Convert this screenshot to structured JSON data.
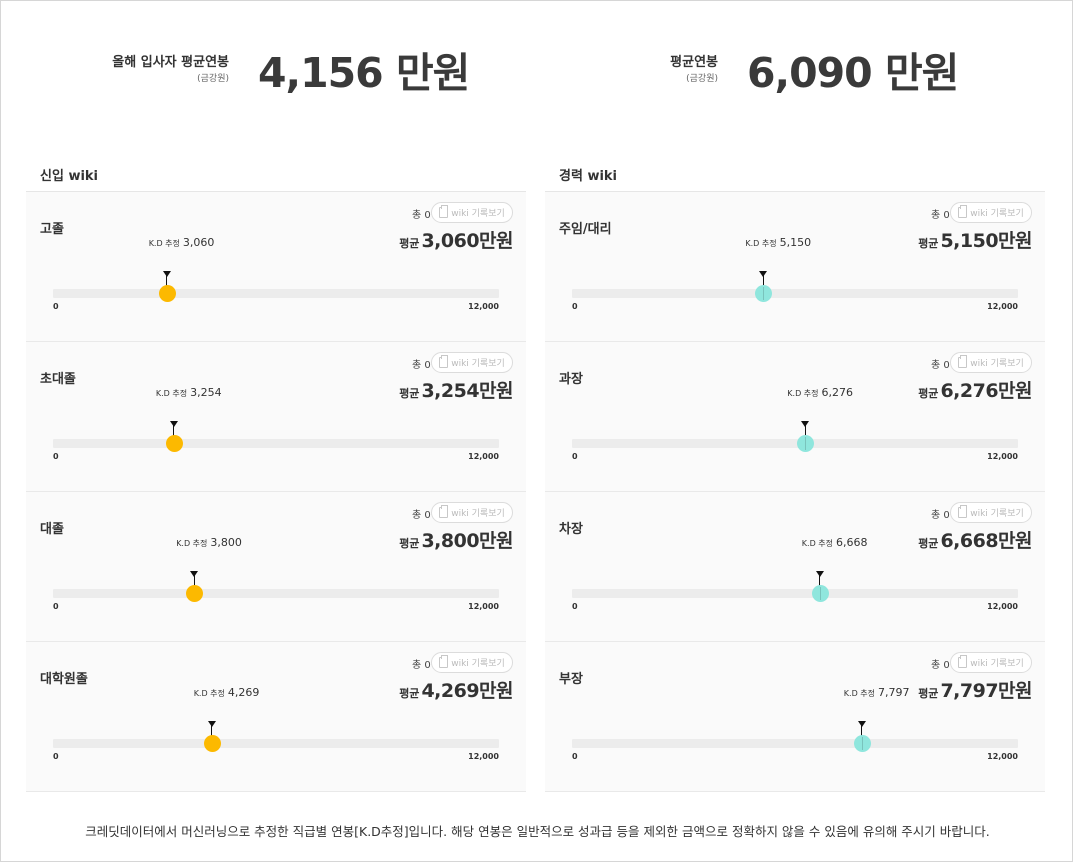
{
  "summary": {
    "new_hire": {
      "label": "올해 입사자 평균연봉",
      "sub": "(금강원)",
      "value": "4,156 만원"
    },
    "average": {
      "label": "평균연봉",
      "sub": "(금강원)",
      "value": "6,090 만원"
    }
  },
  "new_wiki": {
    "title": "신입 wiki",
    "cards": [
      {
        "name": "고졸",
        "count": "총 0건",
        "wiki_button": "wiki 기록보기",
        "avg_label": "평균",
        "avg_value": "3,060만원",
        "kd_label": "K.D 추정",
        "kd_value": "3,060",
        "kd_number": 3060,
        "min": "0",
        "max": "12,000"
      },
      {
        "name": "초대졸",
        "count": "총 0건",
        "wiki_button": "wiki 기록보기",
        "avg_label": "평균",
        "avg_value": "3,254만원",
        "kd_label": "K.D 추정",
        "kd_value": "3,254",
        "kd_number": 3254,
        "min": "0",
        "max": "12,000"
      },
      {
        "name": "대졸",
        "count": "총 0건",
        "wiki_button": "wiki 기록보기",
        "avg_label": "평균",
        "avg_value": "3,800만원",
        "kd_label": "K.D 추정",
        "kd_value": "3,800",
        "kd_number": 3800,
        "min": "0",
        "max": "12,000"
      },
      {
        "name": "대학원졸",
        "count": "총 0건",
        "wiki_button": "wiki 기록보기",
        "avg_label": "평균",
        "avg_value": "4,269만원",
        "kd_label": "K.D 추정",
        "kd_value": "4,269",
        "kd_number": 4269,
        "min": "0",
        "max": "12,000"
      }
    ]
  },
  "career_wiki": {
    "title": "경력 wiki",
    "cards": [
      {
        "name": "주임/대리",
        "count": "총 0건",
        "wiki_button": "wiki 기록보기",
        "avg_label": "평균",
        "avg_value": "5,150만원",
        "kd_label": "K.D 추정",
        "kd_value": "5,150",
        "kd_number": 5150,
        "min": "0",
        "max": "12,000"
      },
      {
        "name": "과장",
        "count": "총 0건",
        "wiki_button": "wiki 기록보기",
        "avg_label": "평균",
        "avg_value": "6,276만원",
        "kd_label": "K.D 추정",
        "kd_value": "6,276",
        "kd_number": 6276,
        "min": "0",
        "max": "12,000"
      },
      {
        "name": "차장",
        "count": "총 0건",
        "wiki_button": "wiki 기록보기",
        "avg_label": "평균",
        "avg_value": "6,668만원",
        "kd_label": "K.D 추정",
        "kd_value": "6,668",
        "kd_number": 6668,
        "min": "0",
        "max": "12,000"
      },
      {
        "name": "부장",
        "count": "총 0건",
        "wiki_button": "wiki 기록보기",
        "avg_label": "평균",
        "avg_value": "7,797만원",
        "kd_label": "K.D 추정",
        "kd_value": "7,797",
        "kd_number": 7797,
        "min": "0",
        "max": "12,000"
      }
    ]
  },
  "scale_max": 12000,
  "colors": {
    "new_dot": "#fcb900",
    "career_dot": "#8fe6dd"
  },
  "icons": {
    "wiki_button_icon": "clipboard-icon",
    "marker_icon": "triangle-pointer-icon"
  },
  "footer": "크레딧데이터에서 머신러닝으로 추정한 직급별 연봉[K.D추정]입니다. 해당 연봉은 일반적으로 성과급 등을 제외한 금액으로 정확하지 않을 수 있음에 유의해 주시기 바랍니다."
}
